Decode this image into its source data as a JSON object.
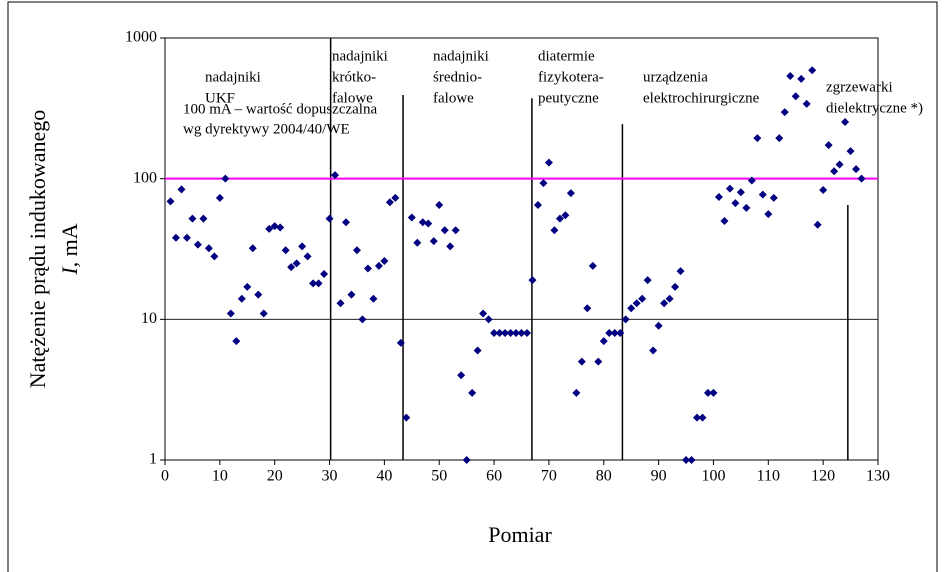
{
  "chart_data": {
    "type": "scatter",
    "y_label": [
      "Natężenie prądu indukowanego",
      "I,",
      "mA"
    ],
    "x_label": "Pomiar",
    "color": "#000080",
    "log_y": true,
    "xlim": [
      0,
      130
    ],
    "xticks": [
      0,
      10,
      20,
      30,
      40,
      50,
      60,
      70,
      80,
      90,
      100,
      110,
      120,
      130
    ],
    "ylim": [
      1,
      1000
    ],
    "yticks": [
      1,
      10,
      100,
      1000
    ],
    "grid_y": [
      10
    ],
    "reference": {
      "value": 100,
      "color": "#ff00ff",
      "label": [
        "100 mA – wartość dopuszczalna",
        "wg dyrektywy 2004/40/WE"
      ]
    },
    "dividers": [
      {
        "x": 30.2,
        "top": 1000
      },
      {
        "x": 43.4,
        "top": 393
      },
      {
        "x": 66.9,
        "top": 373
      },
      {
        "x": 83.4,
        "top": 244
      },
      {
        "x": 124.5,
        "top": 65
      }
    ],
    "groups": [
      {
        "lines": [
          "nadajniki",
          "UKF"
        ]
      },
      {
        "lines": [
          "nadajniki",
          "krótko-",
          "falowe"
        ]
      },
      {
        "lines": [
          "nadajniki",
          "średnio-",
          "falowe"
        ]
      },
      {
        "lines": [
          "diatermie",
          "fizykotera-",
          "peutyczne"
        ]
      },
      {
        "lines": [
          "urządzenia",
          "elektrochirurgiczne"
        ]
      },
      {
        "lines": [
          "zgrzewarki",
          "dielektryczne *)"
        ]
      }
    ],
    "x": [
      1,
      2,
      3,
      4,
      5,
      6,
      7,
      8,
      9,
      10,
      11,
      12,
      13,
      14,
      15,
      16,
      17,
      18,
      19,
      20,
      21,
      22,
      23,
      24,
      25,
      26,
      27,
      28,
      29,
      30,
      31,
      32,
      33,
      34,
      35,
      36,
      37,
      38,
      39,
      40,
      41,
      42,
      43,
      44,
      45,
      46,
      47,
      48,
      49,
      50,
      51,
      52,
      53,
      54,
      55,
      56,
      57,
      58,
      59,
      60,
      61,
      62,
      63,
      64,
      65,
      66,
      67,
      68,
      69,
      70,
      71,
      72,
      73,
      74,
      75,
      76,
      77,
      78,
      79,
      80,
      81,
      82,
      83,
      84,
      85,
      86,
      87,
      88,
      89,
      90,
      91,
      92,
      93,
      94,
      95,
      96,
      97,
      98,
      99,
      100,
      101,
      102,
      103,
      104,
      105,
      106,
      107,
      108,
      109,
      110,
      111,
      112,
      113,
      114,
      115,
      116,
      117,
      118,
      119,
      120,
      121,
      122,
      123,
      124,
      125,
      126,
      127
    ],
    "values": [
      69,
      38,
      84,
      38,
      52,
      34,
      52,
      32,
      28,
      73,
      100,
      11,
      7,
      14,
      17,
      32,
      15,
      11,
      44,
      46,
      45,
      31,
      23.5,
      25,
      33,
      28,
      18,
      18,
      21,
      52,
      106,
      13,
      49,
      15,
      31,
      10,
      23,
      14,
      24,
      26,
      68,
      73,
      6.8,
      2,
      53,
      35,
      49,
      48,
      36,
      65,
      43,
      33,
      43,
      4,
      1,
      3,
      6,
      11,
      10,
      8,
      8,
      8,
      8,
      8,
      8,
      8,
      19,
      65,
      93,
      130,
      43,
      52,
      55,
      79,
      3,
      5,
      12,
      24,
      5,
      7,
      8,
      8,
      8,
      10,
      12,
      13,
      14,
      19,
      6,
      9,
      13,
      14,
      17,
      22,
      1,
      1,
      2,
      2,
      3,
      3,
      74,
      50,
      85,
      67,
      80,
      62,
      97,
      194,
      77,
      56,
      73,
      194,
      297,
      537,
      385,
      512,
      340,
      590,
      47,
      83,
      173,
      113,
      126,
      253,
      157,
      117,
      100
    ]
  }
}
